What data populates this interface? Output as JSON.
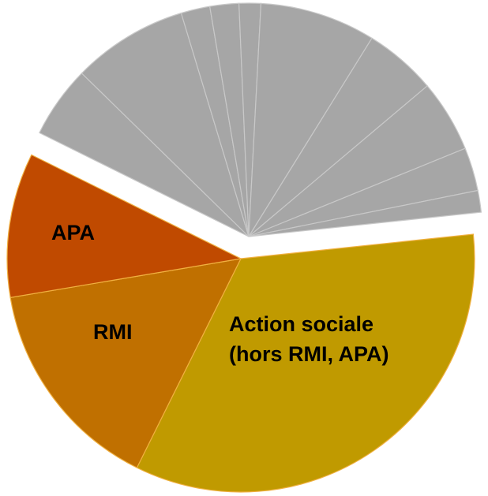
{
  "chart_data": {
    "type": "pie",
    "categories": [
      "Action sociale\n(hors RMI, APA)",
      "RMI",
      "APA",
      null,
      null,
      null,
      null,
      null,
      null,
      null,
      null,
      null,
      null
    ],
    "values": [
      34,
      15,
      10,
      5,
      8,
      2,
      2,
      1.5,
      8,
      5,
      5,
      3,
      1.5
    ],
    "colors": [
      "#c09a00",
      "#c07000",
      "#c04a00",
      "#a6a6a6",
      "#a6a6a6",
      "#a6a6a6",
      "#a6a6a6",
      "#a6a6a6",
      "#a6a6a6",
      "#a6a6a6",
      "#a6a6a6",
      "#a6a6a6",
      "#a6a6a6"
    ]
  }
}
